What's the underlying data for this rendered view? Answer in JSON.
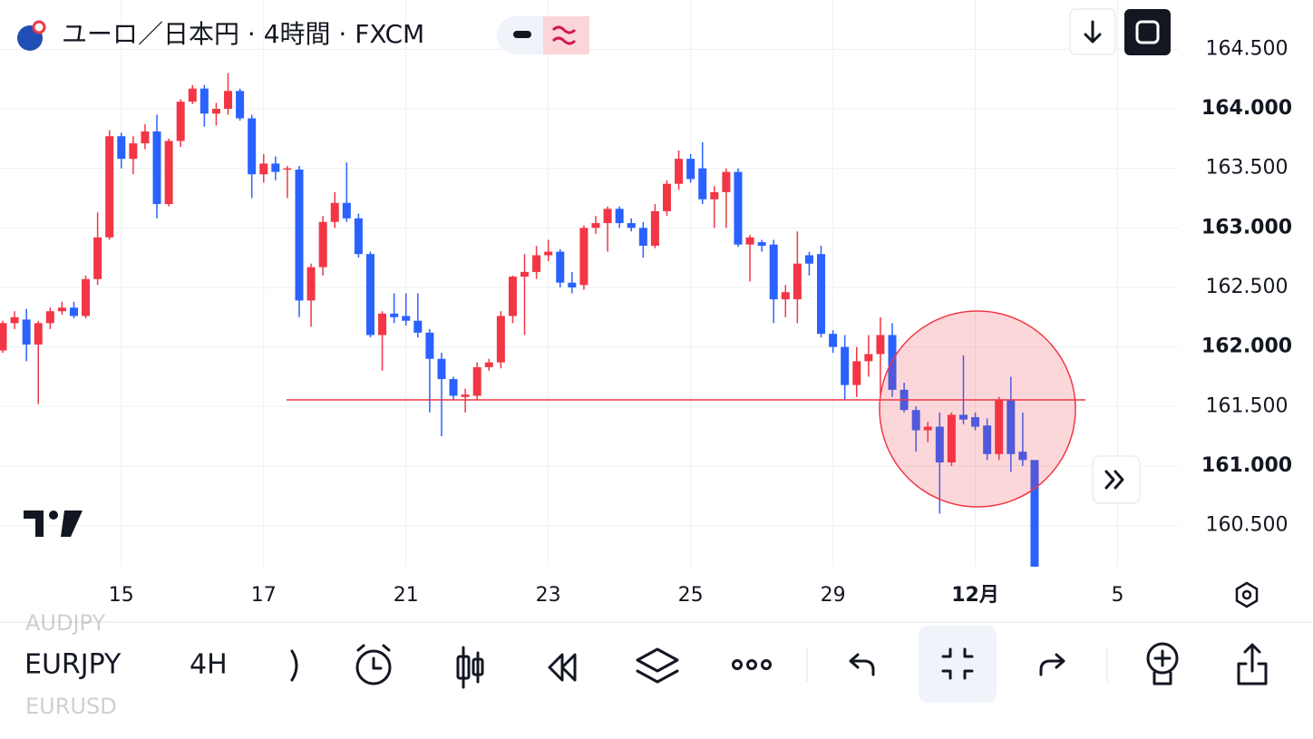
{
  "chart_data": {
    "type": "candlestick",
    "title": "ユーロ／日本円 · 4時間 · FXCM",
    "categories": [
      null,
      null,
      null,
      null,
      null,
      null,
      null,
      null,
      null,
      null,
      "15",
      null,
      null,
      null,
      null,
      null,
      null,
      null,
      null,
      null,
      null,
      null,
      "17",
      null,
      null,
      null,
      null,
      null,
      null,
      null,
      null,
      null,
      null,
      null,
      "21",
      null,
      null,
      null,
      null,
      null,
      null,
      null,
      null,
      null,
      null,
      null,
      "23",
      null,
      null,
      null,
      null,
      null,
      null,
      null,
      null,
      null,
      null,
      null,
      "25",
      null,
      null,
      null,
      null,
      null,
      null,
      null,
      null,
      null,
      null,
      null,
      "29",
      null,
      null,
      null,
      null,
      null,
      null,
      null,
      null,
      null,
      null,
      null,
      "12月",
      null,
      null,
      null,
      null,
      null,
      null,
      null,
      null,
      null,
      null,
      null,
      "5",
      null,
      null,
      null,
      null,
      null
    ],
    "open": [
      161.97,
      162.2,
      162.23,
      162.02,
      162.2,
      162.3,
      162.33,
      162.26,
      162.57,
      162.92,
      163.77,
      163.58,
      163.71,
      163.81,
      163.2,
      163.73,
      164.06,
      164.17,
      163.96,
      164.0,
      164.15,
      163.92,
      163.45,
      163.54,
      163.49,
      163.49,
      162.39,
      162.67,
      163.05,
      163.21,
      163.08,
      162.78,
      162.1,
      162.28,
      162.26,
      162.22,
      162.12,
      161.9,
      161.73,
      161.58,
      161.59,
      161.83,
      161.87,
      162.26,
      162.59,
      162.63,
      162.77,
      162.8,
      162.54,
      162.52,
      163.0,
      163.04,
      163.16,
      163.04,
      163.0,
      162.85,
      163.14,
      163.37,
      163.58,
      163.5,
      163.24,
      163.3,
      163.47,
      162.86,
      162.88,
      162.86,
      162.4,
      162.4,
      162.77,
      162.78,
      162.11,
      162.0,
      161.68,
      161.88,
      161.94,
      162.1,
      161.64,
      161.47,
      161.3,
      161.33,
      161.03,
      161.43,
      161.41,
      161.34,
      161.1,
      161.56,
      161.12,
      161.05,
      null,
      null,
      null,
      null,
      null,
      null,
      null,
      null,
      null,
      null,
      null,
      null
    ],
    "high": [
      162.22,
      162.3,
      162.32,
      162.22,
      162.33,
      162.38,
      162.38,
      162.6,
      163.13,
      163.82,
      163.8,
      163.77,
      163.87,
      163.95,
      163.75,
      164.08,
      164.2,
      164.2,
      164.05,
      164.3,
      164.17,
      163.95,
      163.62,
      163.6,
      163.52,
      163.52,
      162.7,
      163.1,
      163.3,
      163.55,
      163.12,
      162.8,
      162.3,
      162.45,
      162.45,
      162.45,
      162.15,
      161.95,
      161.75,
      161.65,
      161.87,
      161.9,
      162.3,
      162.6,
      162.78,
      162.85,
      162.9,
      162.82,
      162.63,
      163.02,
      163.1,
      163.18,
      163.18,
      163.08,
      163.05,
      163.2,
      163.4,
      163.65,
      163.62,
      163.72,
      163.35,
      163.5,
      163.5,
      162.94,
      162.9,
      162.9,
      162.52,
      162.97,
      162.8,
      162.85,
      162.14,
      162.1,
      162.0,
      162.1,
      162.25,
      162.2,
      161.7,
      161.5,
      161.37,
      161.45,
      161.45,
      161.93,
      161.45,
      161.4,
      161.58,
      161.75,
      161.45,
      161.05,
      null,
      null,
      null,
      null,
      null,
      null,
      null,
      null,
      null,
      null,
      null,
      null
    ],
    "low": [
      161.95,
      162.15,
      161.88,
      161.52,
      162.15,
      162.27,
      162.24,
      162.24,
      162.52,
      162.9,
      163.5,
      163.45,
      163.66,
      163.08,
      163.18,
      163.68,
      164.04,
      163.85,
      163.86,
      163.95,
      163.9,
      163.25,
      163.38,
      163.4,
      163.25,
      162.25,
      162.17,
      162.6,
      163.0,
      163.05,
      162.75,
      162.08,
      161.8,
      162.2,
      162.18,
      162.08,
      161.45,
      161.25,
      161.55,
      161.45,
      161.55,
      161.8,
      161.82,
      162.2,
      162.1,
      162.57,
      162.72,
      162.5,
      162.45,
      162.48,
      162.95,
      162.8,
      163.0,
      162.97,
      162.75,
      162.83,
      163.1,
      163.32,
      163.38,
      163.2,
      163.0,
      163.0,
      162.84,
      162.55,
      162.8,
      162.2,
      162.25,
      162.2,
      162.6,
      162.08,
      161.95,
      161.56,
      161.58,
      161.75,
      161.6,
      161.58,
      161.45,
      161.12,
      161.2,
      160.6,
      161.0,
      161.35,
      161.3,
      161.05,
      161.05,
      160.95,
      161.0,
      160.1,
      null,
      null,
      null,
      null,
      null,
      null,
      null,
      null,
      null,
      null,
      null,
      null
    ],
    "close": [
      162.2,
      162.25,
      162.02,
      162.2,
      162.3,
      162.33,
      162.26,
      162.57,
      162.92,
      163.77,
      163.58,
      163.71,
      163.81,
      163.2,
      163.73,
      164.06,
      164.17,
      163.96,
      164.0,
      164.15,
      163.92,
      163.45,
      163.54,
      163.47,
      163.5,
      162.39,
      162.67,
      163.05,
      163.21,
      163.08,
      162.78,
      162.1,
      162.28,
      162.25,
      162.22,
      162.12,
      161.9,
      161.73,
      161.59,
      161.6,
      161.83,
      161.87,
      162.26,
      162.59,
      162.63,
      162.77,
      162.8,
      162.54,
      162.5,
      163.0,
      163.04,
      163.16,
      163.04,
      163.0,
      162.85,
      163.14,
      163.37,
      163.58,
      163.41,
      163.24,
      163.3,
      163.47,
      162.86,
      162.92,
      162.85,
      162.4,
      162.46,
      162.7,
      162.7,
      162.11,
      162.0,
      161.68,
      161.88,
      161.94,
      162.1,
      161.64,
      161.47,
      161.3,
      161.33,
      161.03,
      161.43,
      161.39,
      161.33,
      161.1,
      161.56,
      161.1,
      161.05,
      160.1,
      null,
      null,
      null,
      null,
      null,
      null,
      null,
      null,
      null,
      null,
      null,
      null
    ],
    "up_color": "#f23645",
    "down_color": "#2962ff",
    "hline": 161.555,
    "hline_color": "#f23645",
    "ylim": [
      160.154,
      164.914
    ],
    "yticks": [
      {
        "value": 160.5,
        "label": "160.500"
      },
      {
        "value": 161,
        "label": "161.000"
      },
      {
        "value": 161.5,
        "label": "161.500"
      },
      {
        "value": 162,
        "label": "162.000"
      },
      {
        "value": 162.5,
        "label": "162.500"
      },
      {
        "value": 163,
        "label": "163.000"
      },
      {
        "value": 163.5,
        "label": "163.500"
      },
      {
        "value": 164,
        "label": "164.000"
      },
      {
        "value": 164.5,
        "label": "164.500"
      }
    ],
    "grid": true
  },
  "toolbar": {
    "symbol": "EURJPY",
    "interval": "4H",
    "symbol_above": "AUDJPY",
    "symbol_below": "EURUSD"
  }
}
